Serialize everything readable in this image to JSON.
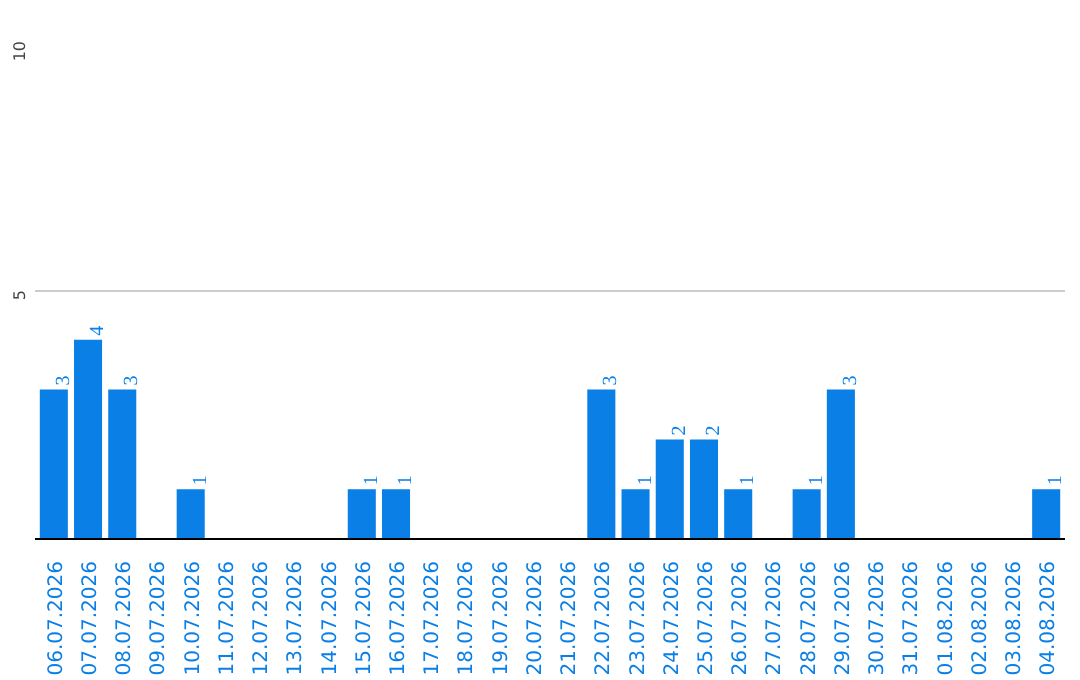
{
  "chart_data": {
    "type": "bar",
    "categories": [
      "06.07.2026",
      "07.07.2026",
      "08.07.2026",
      "09.07.2026",
      "10.07.2026",
      "11.07.2026",
      "12.07.2026",
      "13.07.2026",
      "14.07.2026",
      "15.07.2026",
      "16.07.2026",
      "17.07.2026",
      "18.07.2026",
      "19.07.2026",
      "20.07.2026",
      "21.07.2026",
      "22.07.2026",
      "23.07.2026",
      "24.07.2026",
      "25.07.2026",
      "26.07.2026",
      "27.07.2026",
      "28.07.2026",
      "29.07.2026",
      "30.07.2026",
      "31.07.2026",
      "01.08.2026",
      "02.08.2026",
      "03.08.2026",
      "04.08.2026"
    ],
    "values": [
      3,
      4,
      3,
      0,
      1,
      0,
      0,
      0,
      0,
      1,
      1,
      0,
      0,
      0,
      0,
      0,
      3,
      1,
      2,
      2,
      1,
      0,
      1,
      3,
      0,
      0,
      0,
      0,
      0,
      1
    ],
    "value_labels": [
      "3",
      "4",
      "3",
      null,
      "1",
      null,
      null,
      null,
      null,
      "1",
      "1",
      null,
      null,
      null,
      null,
      null,
      "3",
      "1",
      "2",
      "2",
      "1",
      null,
      "1",
      "3",
      null,
      null,
      null,
      null,
      null,
      "1"
    ],
    "color": "#0a7fe6",
    "ylim": [
      0,
      10
    ],
    "yticks": [
      5,
      10
    ],
    "grid": "y"
  }
}
